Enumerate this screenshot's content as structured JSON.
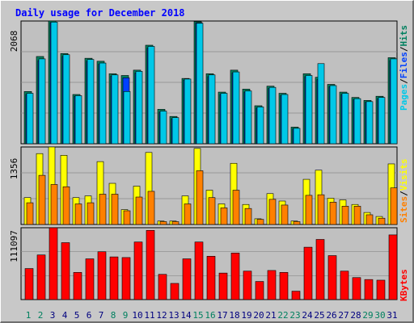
{
  "title": "Daily usage for December 2018",
  "colors": {
    "background": "#c8c8c8",
    "plot": "#c0c0c0",
    "title": "#0000ff",
    "hits": "#00805f",
    "files": "#0040ff",
    "pages": "#00c8e8",
    "visits": "#ffff00",
    "sites": "#ff8000",
    "kbytes": "#ff0000",
    "weekday": "#00007f",
    "weekend": "#00805f"
  },
  "chart_data": [
    {
      "type": "bar",
      "y_max_label": "2068",
      "ylim": [
        0,
        2068
      ],
      "legend": [
        {
          "label": "Pages",
          "color": "#00c8e8"
        },
        {
          "label": "Files",
          "color": "#0040ff"
        },
        {
          "label": "Hits",
          "color": "#00805f"
        }
      ],
      "categories": [
        "1",
        "2",
        "3",
        "4",
        "5",
        "6",
        "7",
        "8",
        "9",
        "10",
        "11",
        "12",
        "13",
        "14",
        "15",
        "16",
        "17",
        "18",
        "19",
        "20",
        "21",
        "22",
        "23",
        "24",
        "25",
        "26",
        "27",
        "28",
        "29",
        "30",
        "31"
      ],
      "series": [
        {
          "name": "Hits",
          "values": [
            880,
            1470,
            2068,
            1520,
            830,
            1440,
            1390,
            1180,
            1150,
            1240,
            1660,
            580,
            460,
            1100,
            2060,
            1180,
            870,
            1240,
            920,
            640,
            970,
            850,
            280,
            1180,
            1120,
            1000,
            870,
            780,
            730,
            800,
            1450
          ]
        },
        {
          "name": "Files",
          "values": [
            830,
            1400,
            2040,
            1470,
            800,
            1390,
            1340,
            1140,
            1110,
            1190,
            1610,
            530,
            420,
            1070,
            2040,
            1130,
            830,
            1190,
            870,
            600,
            930,
            810,
            250,
            1130,
            1080,
            960,
            830,
            740,
            700,
            760,
            1400
          ]
        },
        {
          "name": "Pages",
          "values": [
            850,
            1430,
            2050,
            1500,
            810,
            1420,
            1360,
            1160,
            880,
            1220,
            1640,
            550,
            440,
            1090,
            2030,
            1160,
            850,
            1210,
            890,
            620,
            950,
            830,
            260,
            1150,
            1350,
            980,
            850,
            760,
            710,
            780,
            1430
          ]
        }
      ]
    },
    {
      "type": "bar",
      "y_max_label": "1356",
      "ylim": [
        0,
        1356
      ],
      "legend": [
        {
          "label": "Sites",
          "color": "#ff8000"
        },
        {
          "label": "Visits",
          "color": "#ffff00"
        }
      ],
      "categories": [
        "1",
        "2",
        "3",
        "4",
        "5",
        "6",
        "7",
        "8",
        "9",
        "10",
        "11",
        "12",
        "13",
        "14",
        "15",
        "16",
        "17",
        "18",
        "19",
        "20",
        "21",
        "22",
        "23",
        "24",
        "25",
        "26",
        "27",
        "28",
        "29",
        "30",
        "31"
      ],
      "series": [
        {
          "name": "Visits",
          "values": [
            470,
            1240,
            1356,
            1210,
            470,
            500,
            1100,
            720,
            260,
            670,
            1260,
            60,
            60,
            500,
            1330,
            600,
            360,
            1070,
            350,
            100,
            540,
            410,
            60,
            790,
            950,
            460,
            430,
            350,
            210,
            140,
            1060
          ]
        },
        {
          "name": "Sites",
          "values": [
            380,
            860,
            700,
            660,
            360,
            380,
            530,
            530,
            240,
            480,
            580,
            50,
            50,
            360,
            940,
            470,
            290,
            600,
            280,
            90,
            440,
            340,
            50,
            510,
            520,
            390,
            320,
            320,
            170,
            110,
            640
          ]
        }
      ]
    },
    {
      "type": "bar",
      "y_max_label": "111097",
      "ylim": [
        0,
        111097
      ],
      "legend": [
        {
          "label": "KBytes",
          "color": "#ff0000"
        }
      ],
      "categories": [
        "1",
        "2",
        "3",
        "4",
        "5",
        "6",
        "7",
        "8",
        "9",
        "10",
        "11",
        "12",
        "13",
        "14",
        "15",
        "16",
        "17",
        "18",
        "19",
        "20",
        "21",
        "22",
        "23",
        "24",
        "25",
        "26",
        "27",
        "28",
        "29",
        "30",
        "31"
      ],
      "series": [
        {
          "name": "KBytes",
          "values": [
            48000,
            69000,
            111097,
            88000,
            42000,
            63000,
            74000,
            66000,
            65000,
            89000,
            107000,
            39000,
            25000,
            63000,
            89000,
            67000,
            41000,
            72000,
            44000,
            28000,
            45000,
            42000,
            13000,
            81000,
            93000,
            68000,
            44000,
            34000,
            31000,
            30000,
            100000
          ]
        }
      ]
    }
  ]
}
